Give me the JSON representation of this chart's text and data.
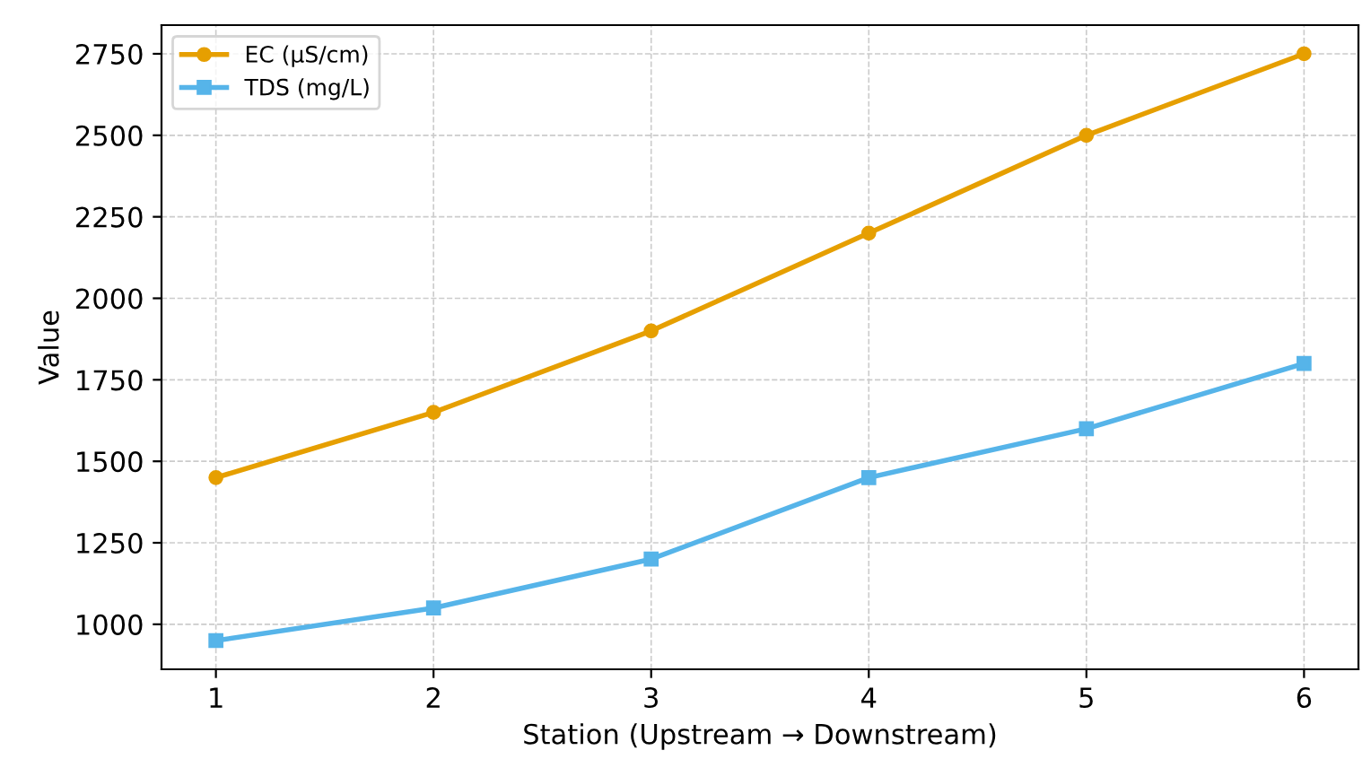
{
  "chart_data": {
    "type": "line",
    "xlabel": "Station (Upstream → Downstream)",
    "ylabel": "Value",
    "x": [
      1,
      2,
      3,
      4,
      5,
      6
    ],
    "series": [
      {
        "name": "EC (µS/cm)",
        "color": "#e69f00",
        "marker": "circle",
        "values": [
          1450,
          1650,
          1900,
          2200,
          2500,
          2750
        ]
      },
      {
        "name": "TDS (mg/L)",
        "color": "#56b4e9",
        "marker": "square",
        "values": [
          950,
          1050,
          1200,
          1450,
          1600,
          1800
        ]
      }
    ],
    "xlim": [
      0.75,
      6.25
    ],
    "xticks": [
      1,
      2,
      3,
      4,
      5,
      6
    ],
    "ylim": [
      862,
      2838
    ],
    "yticks": [
      1000,
      1250,
      1500,
      1750,
      2000,
      2250,
      2500,
      2750
    ],
    "grid": true,
    "legend": "top left",
    "line_style": "solid"
  }
}
